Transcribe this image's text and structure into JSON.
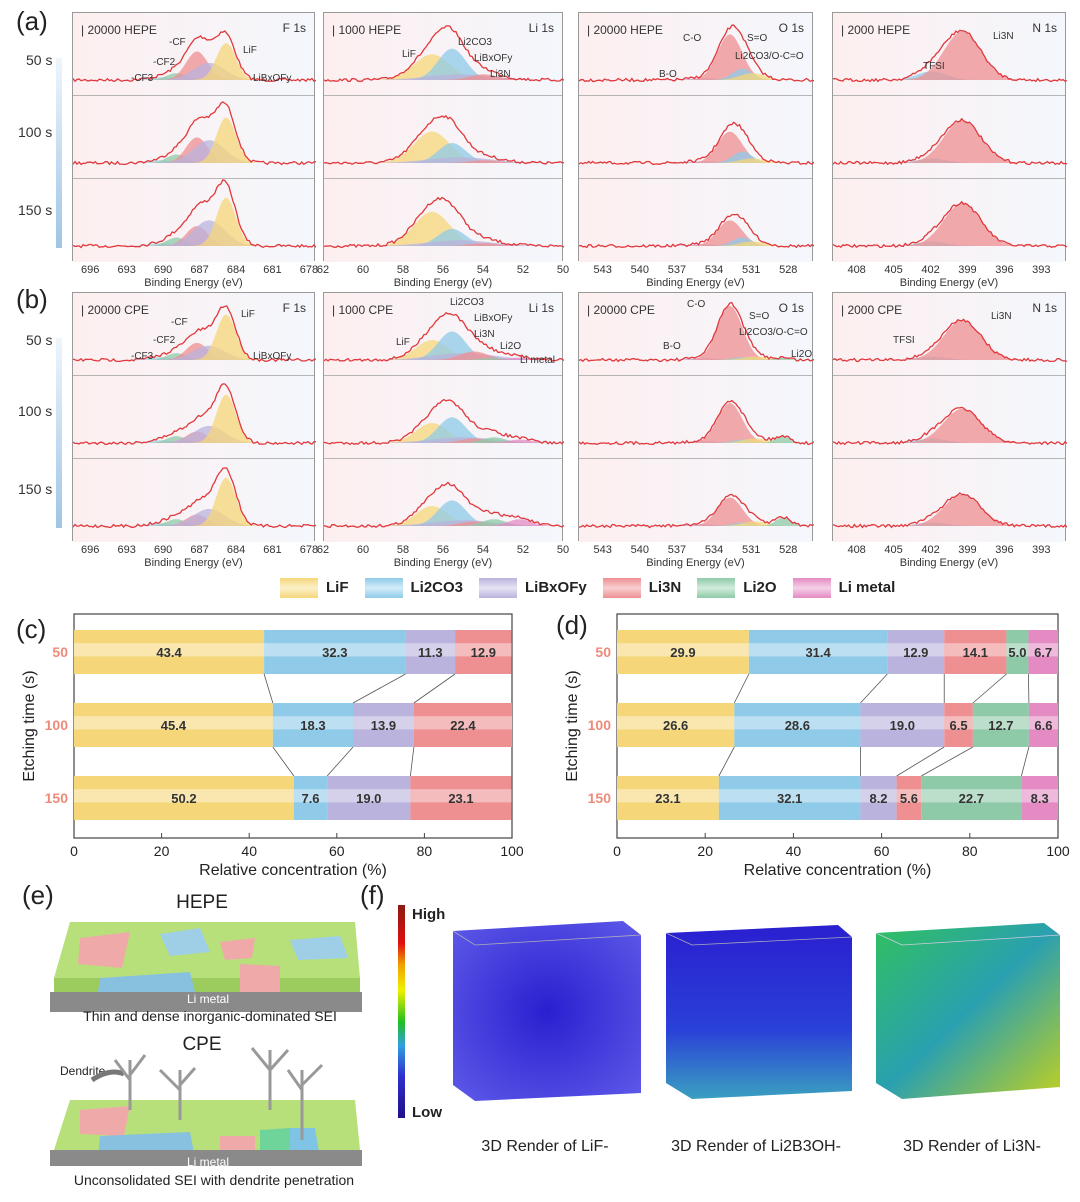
{
  "panel_labels": {
    "a": "(a)",
    "b": "(b)",
    "c": "(c)",
    "d": "(d)",
    "e": "(e)",
    "f": "(f)"
  },
  "etch_rows": [
    "50 s",
    "100 s",
    "150 s"
  ],
  "xps_axis_label": "Binding Energy (eV)",
  "xps": {
    "a": {
      "sample": "HEPE",
      "panels": [
        {
          "element": "F 1s",
          "scale": "20000",
          "range": [
            697.5,
            677.5
          ],
          "ticks": [
            "696",
            "693",
            "690",
            "687",
            "684",
            "681",
            "678"
          ],
          "components": [
            {
              "name": "-CF3",
              "center": 690.3,
              "sigma": 1.0,
              "heights": [
                0.05,
                0.05,
                0.05
              ],
              "color": "#a9d2ea"
            },
            {
              "name": "-CF2",
              "center": 689.0,
              "sigma": 0.8,
              "heights": [
                0.12,
                0.15,
                0.15
              ],
              "color": "#8fcaa8"
            },
            {
              "name": "-CF",
              "center": 687.3,
              "sigma": 0.9,
              "heights": [
                0.5,
                0.45,
                0.35
              ],
              "color": "#ee8f92"
            },
            {
              "name": "LiBxOFy",
              "center": 686.3,
              "sigma": 1.3,
              "heights": [
                0.3,
                0.4,
                0.45
              ],
              "color": "#b9b3de"
            },
            {
              "name": "LiF",
              "center": 684.9,
              "sigma": 0.8,
              "heights": [
                0.65,
                0.8,
                0.85
              ],
              "color": "#f5d77a"
            }
          ]
        },
        {
          "element": "Li 1s",
          "scale": "1000",
          "range": [
            62,
            50
          ],
          "ticks": [
            "62",
            "60",
            "58",
            "56",
            "54",
            "52",
            "50"
          ],
          "components": [
            {
              "name": "LiF",
              "center": 56.6,
              "sigma": 0.9,
              "heights": [
                0.45,
                0.55,
                0.6
              ],
              "color": "#f5d77a"
            },
            {
              "name": "Li2CO3",
              "center": 55.6,
              "sigma": 0.7,
              "heights": [
                0.55,
                0.35,
                0.3
              ],
              "color": "#8fcbe8"
            },
            {
              "name": "LiBxOFy",
              "center": 55.2,
              "sigma": 1.6,
              "heights": [
                0.1,
                0.1,
                0.1
              ],
              "color": "#b9b3de"
            },
            {
              "name": "Li3N",
              "center": 54.0,
              "sigma": 0.7,
              "heights": [
                0.1,
                0.05,
                0.05
              ],
              "color": "#ee8f92"
            }
          ]
        },
        {
          "element": "O 1s",
          "scale": "20000",
          "range": [
            545,
            526
          ],
          "ticks": [
            "543",
            "540",
            "537",
            "534",
            "531",
            "528"
          ],
          "components": [
            {
              "name": "B-O",
              "center": 535.0,
              "sigma": 1.2,
              "heights": [
                0.03,
                0.03,
                0.03
              ],
              "color": "#b9b3de"
            },
            {
              "name": "C-O",
              "center": 532.8,
              "sigma": 1.0,
              "heights": [
                0.8,
                0.55,
                0.45
              ],
              "color": "#ee8f92"
            },
            {
              "name": "S=O",
              "center": 531.8,
              "sigma": 0.8,
              "heights": [
                0.2,
                0.2,
                0.15
              ],
              "color": "#8fcbe8"
            },
            {
              "name": "Li2CO3/O-C=O",
              "center": 531.0,
              "sigma": 1.0,
              "heights": [
                0.12,
                0.08,
                0.08
              ],
              "color": "#f5d77a"
            }
          ]
        },
        {
          "element": "N 1s",
          "scale": "2000",
          "range": [
            410,
            391
          ],
          "ticks": [
            "408",
            "405",
            "402",
            "399",
            "396",
            "393"
          ],
          "components": [
            {
              "name": "TFSI",
              "center": 402.0,
              "sigma": 1.2,
              "heights": [
                0.15,
                0.08,
                0.08
              ],
              "color": "#8fcbe8"
            },
            {
              "name": "Li3N",
              "center": 399.5,
              "sigma": 1.5,
              "heights": [
                0.85,
                0.75,
                0.75
              ],
              "color": "#ee8f92"
            }
          ]
        }
      ]
    },
    "b": {
      "sample": "CPE",
      "panels": [
        {
          "element": "F 1s",
          "scale": "20000",
          "range": [
            697.5,
            677.5
          ],
          "ticks": [
            "696",
            "693",
            "690",
            "687",
            "684",
            "681",
            "678"
          ],
          "components": [
            {
              "name": "-CF3",
              "center": 690.3,
              "sigma": 1.0,
              "heights": [
                0.05,
                0.05,
                0.05
              ],
              "color": "#a9d2ea"
            },
            {
              "name": "-CF2",
              "center": 689.0,
              "sigma": 0.8,
              "heights": [
                0.12,
                0.12,
                0.12
              ],
              "color": "#8fcaa8"
            },
            {
              "name": "-CF",
              "center": 687.3,
              "sigma": 0.9,
              "heights": [
                0.3,
                0.2,
                0.2
              ],
              "color": "#ee8f92"
            },
            {
              "name": "LiBxOFy",
              "center": 686.3,
              "sigma": 1.3,
              "heights": [
                0.25,
                0.3,
                0.3
              ],
              "color": "#b9b3de"
            },
            {
              "name": "LiF",
              "center": 684.9,
              "sigma": 0.8,
              "heights": [
                0.8,
                0.85,
                0.85
              ],
              "color": "#f5d77a"
            }
          ]
        },
        {
          "element": "Li 1s",
          "scale": "1000",
          "range": [
            62,
            50
          ],
          "ticks": [
            "62",
            "60",
            "58",
            "56",
            "54",
            "52",
            "50"
          ],
          "components": [
            {
              "name": "LiF",
              "center": 56.6,
              "sigma": 0.8,
              "heights": [
                0.35,
                0.35,
                0.35
              ],
              "color": "#f5d77a"
            },
            {
              "name": "Li2CO3",
              "center": 55.6,
              "sigma": 0.7,
              "heights": [
                0.5,
                0.45,
                0.45
              ],
              "color": "#8fcbe8"
            },
            {
              "name": "LiBxOFy",
              "center": 55.0,
              "sigma": 1.6,
              "heights": [
                0.12,
                0.1,
                0.1
              ],
              "color": "#b9b3de"
            },
            {
              "name": "Li3N",
              "center": 54.5,
              "sigma": 0.7,
              "heights": [
                0.15,
                0.08,
                0.08
              ],
              "color": "#ee8f92"
            },
            {
              "name": "Li2O",
              "center": 53.5,
              "sigma": 0.6,
              "heights": [
                0.04,
                0.1,
                0.12
              ],
              "color": "#8fcaa8"
            },
            {
              "name": "Li metal",
              "center": 52.2,
              "sigma": 0.6,
              "heights": [
                0.04,
                0.06,
                0.12
              ],
              "color": "#e48bc4"
            }
          ]
        },
        {
          "element": "O 1s",
          "scale": "20000",
          "range": [
            545,
            526
          ],
          "ticks": [
            "543",
            "540",
            "537",
            "534",
            "531",
            "528"
          ],
          "components": [
            {
              "name": "B-O",
              "center": 535.0,
              "sigma": 1.2,
              "heights": [
                0.03,
                0.03,
                0.03
              ],
              "color": "#b9b3de"
            },
            {
              "name": "C-O",
              "center": 532.8,
              "sigma": 1.0,
              "heights": [
                0.95,
                0.7,
                0.5
              ],
              "color": "#ee8f92"
            },
            {
              "name": "S=O",
              "center": 531.8,
              "sigma": 0.8,
              "heights": [
                0.05,
                0.06,
                0.06
              ],
              "color": "#8fcbe8"
            },
            {
              "name": "Li2CO3/O-C=O",
              "center": 530.8,
              "sigma": 1.0,
              "heights": [
                0.06,
                0.08,
                0.08
              ],
              "color": "#f5d77a"
            },
            {
              "name": "Li2O",
              "center": 528.5,
              "sigma": 0.6,
              "heights": [
                0.04,
                0.12,
                0.15
              ],
              "color": "#8fcaa8"
            }
          ]
        },
        {
          "element": "N 1s",
          "scale": "2000",
          "range": [
            410,
            391
          ],
          "ticks": [
            "408",
            "405",
            "402",
            "399",
            "396",
            "393"
          ],
          "components": [
            {
              "name": "TFSI",
              "center": 402.0,
              "sigma": 1.2,
              "heights": [
                0.06,
                0.08,
                0.06
              ],
              "color": "#8fcbe8"
            },
            {
              "name": "Li3N",
              "center": 399.5,
              "sigma": 1.5,
              "heights": [
                0.7,
                0.6,
                0.55
              ],
              "color": "#ee8f92"
            }
          ]
        }
      ]
    }
  },
  "legend": [
    {
      "label": "LiF",
      "color": "#f5d77a"
    },
    {
      "label": "Li2CO3",
      "color": "#8fcbe8"
    },
    {
      "label": "LiBxOFy",
      "color": "#b9b3de"
    },
    {
      "label": "Li3N",
      "color": "#ee8f92"
    },
    {
      "label": "Li2O",
      "color": "#8fcaa8"
    },
    {
      "label": "Li metal",
      "color": "#e48bc4"
    }
  ],
  "chart_data": [
    {
      "id": "c",
      "type": "bar",
      "stacked": true,
      "orientation": "horizontal",
      "categories": [
        "50",
        "100",
        "150"
      ],
      "series": [
        {
          "name": "LiF",
          "values": [
            43.4,
            45.4,
            50.2
          ],
          "color": "#f5d77a"
        },
        {
          "name": "Li2CO3",
          "values": [
            32.3,
            18.3,
            7.6
          ],
          "color": "#8fcbe8"
        },
        {
          "name": "LiBxOFy",
          "values": [
            11.3,
            13.9,
            19.0
          ],
          "color": "#b9b3de"
        },
        {
          "name": "Li3N",
          "values": [
            12.9,
            22.4,
            23.1
          ],
          "color": "#ee8f92"
        }
      ],
      "xlabel": "Relative concentration (%)",
      "ylabel": "Etching time (s)",
      "xlim": [
        0,
        100
      ],
      "xticks": [
        "0",
        "20",
        "40",
        "60",
        "80",
        "100"
      ]
    },
    {
      "id": "d",
      "type": "bar",
      "stacked": true,
      "orientation": "horizontal",
      "categories": [
        "50",
        "100",
        "150"
      ],
      "series": [
        {
          "name": "LiF",
          "values": [
            29.9,
            26.6,
            23.1
          ],
          "color": "#f5d77a"
        },
        {
          "name": "Li2CO3",
          "values": [
            31.4,
            28.6,
            32.1
          ],
          "color": "#8fcbe8"
        },
        {
          "name": "LiBxOFy",
          "values": [
            12.9,
            19.0,
            8.2
          ],
          "color": "#b9b3de"
        },
        {
          "name": "Li3N",
          "values": [
            14.1,
            6.5,
            5.6
          ],
          "color": "#ee8f92"
        },
        {
          "name": "Li2O",
          "values": [
            5.0,
            12.7,
            22.7
          ],
          "color": "#8fcaa8"
        },
        {
          "name": "Li metal",
          "values": [
            6.7,
            6.6,
            8.3
          ],
          "color": "#e48bc4"
        }
      ],
      "xlabel": "Relative concentration (%)",
      "ylabel": "Etching time (s)",
      "xlim": [
        0,
        100
      ],
      "xticks": [
        "0",
        "20",
        "40",
        "60",
        "80",
        "100"
      ]
    }
  ],
  "schematic": {
    "hepe_title": "HEPE",
    "cpe_title": "CPE",
    "li_metal": "Li metal",
    "hepe_caption": "Thin and dense inorganic-dominated SEI",
    "cpe_caption": "Unconsolidated SEI with dendrite penetration",
    "dendrite": "Dendrite"
  },
  "renders": {
    "colorbar_high": "High",
    "colorbar_low": "Low",
    "items": [
      {
        "caption": "3D Render of LiF-",
        "style": "blue"
      },
      {
        "caption": "3D Render of Li2B3OH-",
        "style": "blue-green"
      },
      {
        "caption": "3D Render of Li3N-",
        "style": "green-yellow"
      }
    ]
  }
}
